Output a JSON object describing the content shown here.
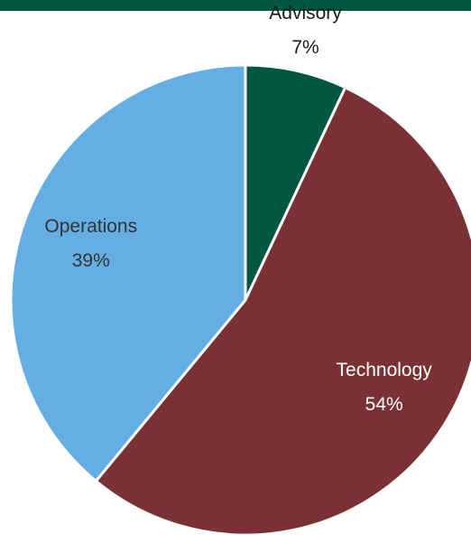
{
  "chart_data": {
    "type": "pie",
    "categories": [
      "Advisory",
      "Technology",
      "Operations"
    ],
    "values": [
      7,
      54,
      39
    ],
    "value_labels": [
      "7%",
      "54%",
      "39%"
    ],
    "colors": [
      "#00573f",
      "#7a3133",
      "#65aee3"
    ]
  }
}
